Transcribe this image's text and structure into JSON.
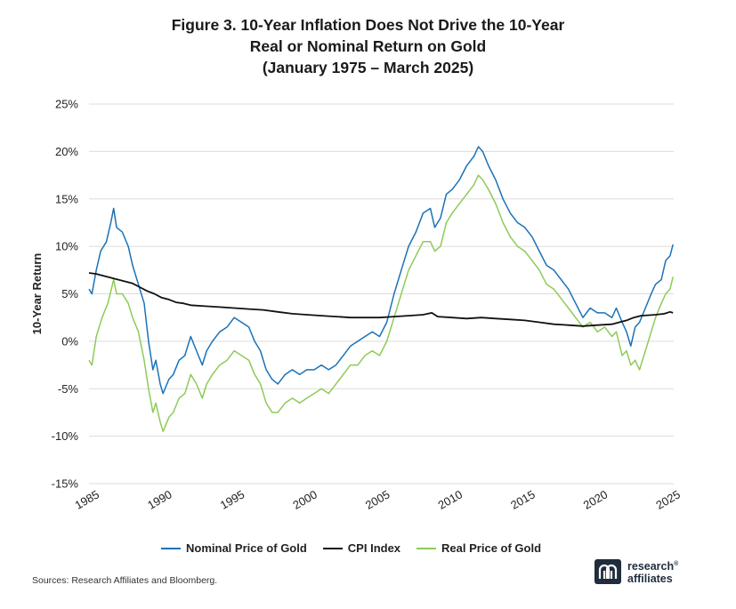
{
  "title": {
    "line1": "Figure 3. 10-Year Inflation Does Not Drive the 10-Year",
    "line2": "Real or Nominal Return on Gold",
    "line3": "(January 1975 – March 2025)"
  },
  "source": "Sources: Research Affiliates and Bloomberg.",
  "logo": {
    "line1": "research",
    "line2": "affiliates",
    "trademark": "®"
  },
  "colors": {
    "nominal": "#1a72b8",
    "cpi": "#111111",
    "real": "#8dcb57",
    "grid": "#dcdcdc"
  },
  "chart_data": {
    "type": "line",
    "ylabel": "10-Year Return",
    "xlabel": "",
    "xlim": [
      1985,
      2025.25
    ],
    "ylim": [
      -15,
      25
    ],
    "x_ticks": [
      1985,
      1990,
      1995,
      2000,
      2005,
      2010,
      2015,
      2020,
      2025
    ],
    "x_tick_labels": [
      "1985",
      "1990",
      "1995",
      "2000",
      "2005",
      "2010",
      "2015",
      "2020",
      "2025"
    ],
    "y_ticks": [
      -15,
      -10,
      -5,
      0,
      5,
      10,
      15,
      20,
      25
    ],
    "y_tick_labels": [
      "-15%",
      "-10%",
      "-5%",
      "0%",
      "5%",
      "10%",
      "15%",
      "20%",
      "25%"
    ],
    "grid": "horizontal",
    "legend_position": "bottom",
    "series": [
      {
        "name": "Nominal Price of Gold",
        "color": "#1a72b8",
        "points": [
          [
            1985.0,
            5.5
          ],
          [
            1985.2,
            5.0
          ],
          [
            1985.5,
            7.5
          ],
          [
            1985.8,
            9.5
          ],
          [
            1986.2,
            10.5
          ],
          [
            1986.5,
            12.5
          ],
          [
            1986.7,
            14.0
          ],
          [
            1986.9,
            12.0
          ],
          [
            1987.3,
            11.5
          ],
          [
            1987.7,
            10.0
          ],
          [
            1988.0,
            8.0
          ],
          [
            1988.4,
            6.0
          ],
          [
            1988.8,
            4.0
          ],
          [
            1989.1,
            0.0
          ],
          [
            1989.4,
            -3.0
          ],
          [
            1989.6,
            -2.0
          ],
          [
            1989.9,
            -4.5
          ],
          [
            1990.1,
            -5.5
          ],
          [
            1990.5,
            -4.0
          ],
          [
            1990.8,
            -3.5
          ],
          [
            1991.2,
            -2.0
          ],
          [
            1991.6,
            -1.5
          ],
          [
            1992.0,
            0.5
          ],
          [
            1992.4,
            -1.0
          ],
          [
            1992.8,
            -2.5
          ],
          [
            1993.1,
            -1.0
          ],
          [
            1993.5,
            0.0
          ],
          [
            1994.0,
            1.0
          ],
          [
            1994.5,
            1.5
          ],
          [
            1995.0,
            2.5
          ],
          [
            1995.5,
            2.0
          ],
          [
            1996.0,
            1.5
          ],
          [
            1996.4,
            0.0
          ],
          [
            1996.8,
            -1.0
          ],
          [
            1997.2,
            -3.0
          ],
          [
            1997.6,
            -4.0
          ],
          [
            1998.0,
            -4.5
          ],
          [
            1998.5,
            -3.5
          ],
          [
            1999.0,
            -3.0
          ],
          [
            1999.5,
            -3.5
          ],
          [
            2000.0,
            -3.0
          ],
          [
            2000.5,
            -3.0
          ],
          [
            2001.0,
            -2.5
          ],
          [
            2001.5,
            -3.0
          ],
          [
            2002.0,
            -2.5
          ],
          [
            2002.5,
            -1.5
          ],
          [
            2003.0,
            -0.5
          ],
          [
            2003.5,
            0.0
          ],
          [
            2004.0,
            0.5
          ],
          [
            2004.5,
            1.0
          ],
          [
            2005.0,
            0.5
          ],
          [
            2005.5,
            2.0
          ],
          [
            2006.0,
            5.0
          ],
          [
            2006.5,
            7.5
          ],
          [
            2007.0,
            10.0
          ],
          [
            2007.5,
            11.5
          ],
          [
            2008.0,
            13.5
          ],
          [
            2008.5,
            14.0
          ],
          [
            2008.8,
            12.0
          ],
          [
            2009.2,
            13.0
          ],
          [
            2009.6,
            15.5
          ],
          [
            2010.0,
            16.0
          ],
          [
            2010.5,
            17.0
          ],
          [
            2011.0,
            18.5
          ],
          [
            2011.5,
            19.5
          ],
          [
            2011.8,
            20.5
          ],
          [
            2012.1,
            20.0
          ],
          [
            2012.5,
            18.5
          ],
          [
            2013.0,
            17.0
          ],
          [
            2013.5,
            15.0
          ],
          [
            2014.0,
            13.5
          ],
          [
            2014.5,
            12.5
          ],
          [
            2015.0,
            12.0
          ],
          [
            2015.5,
            11.0
          ],
          [
            2016.0,
            9.5
          ],
          [
            2016.5,
            8.0
          ],
          [
            2017.0,
            7.5
          ],
          [
            2017.5,
            6.5
          ],
          [
            2018.0,
            5.5
          ],
          [
            2018.5,
            4.0
          ],
          [
            2019.0,
            2.5
          ],
          [
            2019.5,
            3.5
          ],
          [
            2020.0,
            3.0
          ],
          [
            2020.5,
            3.0
          ],
          [
            2021.0,
            2.5
          ],
          [
            2021.3,
            3.5
          ],
          [
            2021.7,
            2.0
          ],
          [
            2022.0,
            1.0
          ],
          [
            2022.3,
            -0.5
          ],
          [
            2022.6,
            1.5
          ],
          [
            2022.9,
            2.0
          ],
          [
            2023.3,
            3.5
          ],
          [
            2023.7,
            5.0
          ],
          [
            2024.0,
            6.0
          ],
          [
            2024.4,
            6.5
          ],
          [
            2024.7,
            8.5
          ],
          [
            2025.0,
            9.0
          ],
          [
            2025.2,
            10.2
          ]
        ]
      },
      {
        "name": "CPI Index",
        "color": "#111111",
        "points": [
          [
            1985.0,
            7.2
          ],
          [
            1985.5,
            7.1
          ],
          [
            1986.0,
            6.9
          ],
          [
            1986.5,
            6.7
          ],
          [
            1987.0,
            6.5
          ],
          [
            1987.5,
            6.3
          ],
          [
            1988.0,
            6.1
          ],
          [
            1988.5,
            5.7
          ],
          [
            1989.0,
            5.3
          ],
          [
            1989.5,
            5.0
          ],
          [
            1990.0,
            4.6
          ],
          [
            1990.5,
            4.4
          ],
          [
            1991.0,
            4.1
          ],
          [
            1991.5,
            4.0
          ],
          [
            1992.0,
            3.8
          ],
          [
            1993.0,
            3.7
          ],
          [
            1994.0,
            3.6
          ],
          [
            1995.0,
            3.5
          ],
          [
            1996.0,
            3.4
          ],
          [
            1997.0,
            3.3
          ],
          [
            1998.0,
            3.1
          ],
          [
            1999.0,
            2.9
          ],
          [
            2000.0,
            2.8
          ],
          [
            2001.0,
            2.7
          ],
          [
            2002.0,
            2.6
          ],
          [
            2003.0,
            2.5
          ],
          [
            2004.0,
            2.5
          ],
          [
            2005.0,
            2.5
          ],
          [
            2006.0,
            2.6
          ],
          [
            2007.0,
            2.7
          ],
          [
            2008.0,
            2.8
          ],
          [
            2008.6,
            3.0
          ],
          [
            2009.0,
            2.6
          ],
          [
            2010.0,
            2.5
          ],
          [
            2011.0,
            2.4
          ],
          [
            2012.0,
            2.5
          ],
          [
            2013.0,
            2.4
          ],
          [
            2014.0,
            2.3
          ],
          [
            2015.0,
            2.2
          ],
          [
            2016.0,
            2.0
          ],
          [
            2017.0,
            1.8
          ],
          [
            2018.0,
            1.7
          ],
          [
            2019.0,
            1.6
          ],
          [
            2020.0,
            1.7
          ],
          [
            2021.0,
            1.8
          ],
          [
            2021.5,
            2.0
          ],
          [
            2022.0,
            2.2
          ],
          [
            2022.5,
            2.5
          ],
          [
            2023.0,
            2.7
          ],
          [
            2024.0,
            2.8
          ],
          [
            2024.6,
            2.9
          ],
          [
            2025.0,
            3.1
          ],
          [
            2025.2,
            3.0
          ]
        ]
      },
      {
        "name": "Real Price of Gold",
        "color": "#8dcb57",
        "points": [
          [
            1985.0,
            -2.0
          ],
          [
            1985.2,
            -2.5
          ],
          [
            1985.5,
            0.5
          ],
          [
            1985.9,
            2.5
          ],
          [
            1986.3,
            4.0
          ],
          [
            1986.7,
            6.5
          ],
          [
            1986.9,
            5.0
          ],
          [
            1987.3,
            5.0
          ],
          [
            1987.7,
            4.0
          ],
          [
            1988.0,
            2.5
          ],
          [
            1988.4,
            1.0
          ],
          [
            1988.8,
            -2.0
          ],
          [
            1989.1,
            -5.0
          ],
          [
            1989.4,
            -7.5
          ],
          [
            1989.6,
            -6.5
          ],
          [
            1989.9,
            -8.5
          ],
          [
            1990.1,
            -9.5
          ],
          [
            1990.5,
            -8.0
          ],
          [
            1990.8,
            -7.5
          ],
          [
            1991.2,
            -6.0
          ],
          [
            1991.6,
            -5.5
          ],
          [
            1992.0,
            -3.5
          ],
          [
            1992.4,
            -4.5
          ],
          [
            1992.8,
            -6.0
          ],
          [
            1993.1,
            -4.5
          ],
          [
            1993.5,
            -3.5
          ],
          [
            1994.0,
            -2.5
          ],
          [
            1994.5,
            -2.0
          ],
          [
            1995.0,
            -1.0
          ],
          [
            1995.5,
            -1.5
          ],
          [
            1996.0,
            -2.0
          ],
          [
            1996.4,
            -3.5
          ],
          [
            1996.8,
            -4.5
          ],
          [
            1997.2,
            -6.5
          ],
          [
            1997.6,
            -7.5
          ],
          [
            1998.0,
            -7.5
          ],
          [
            1998.5,
            -6.5
          ],
          [
            1999.0,
            -6.0
          ],
          [
            1999.5,
            -6.5
          ],
          [
            2000.0,
            -6.0
          ],
          [
            2000.5,
            -5.5
          ],
          [
            2001.0,
            -5.0
          ],
          [
            2001.5,
            -5.5
          ],
          [
            2002.0,
            -4.5
          ],
          [
            2002.5,
            -3.5
          ],
          [
            2003.0,
            -2.5
          ],
          [
            2003.5,
            -2.5
          ],
          [
            2004.0,
            -1.5
          ],
          [
            2004.5,
            -1.0
          ],
          [
            2005.0,
            -1.5
          ],
          [
            2005.5,
            0.0
          ],
          [
            2006.0,
            2.5
          ],
          [
            2006.5,
            5.0
          ],
          [
            2007.0,
            7.5
          ],
          [
            2007.5,
            9.0
          ],
          [
            2008.0,
            10.5
          ],
          [
            2008.5,
            10.5
          ],
          [
            2008.8,
            9.5
          ],
          [
            2009.2,
            10.0
          ],
          [
            2009.6,
            12.5
          ],
          [
            2010.0,
            13.5
          ],
          [
            2010.5,
            14.5
          ],
          [
            2011.0,
            15.5
          ],
          [
            2011.5,
            16.5
          ],
          [
            2011.8,
            17.5
          ],
          [
            2012.1,
            17.0
          ],
          [
            2012.5,
            16.0
          ],
          [
            2013.0,
            14.5
          ],
          [
            2013.5,
            12.5
          ],
          [
            2014.0,
            11.0
          ],
          [
            2014.5,
            10.0
          ],
          [
            2015.0,
            9.5
          ],
          [
            2015.5,
            8.5
          ],
          [
            2016.0,
            7.5
          ],
          [
            2016.5,
            6.0
          ],
          [
            2017.0,
            5.5
          ],
          [
            2017.5,
            4.5
          ],
          [
            2018.0,
            3.5
          ],
          [
            2018.5,
            2.5
          ],
          [
            2019.0,
            1.5
          ],
          [
            2019.5,
            2.0
          ],
          [
            2020.0,
            1.0
          ],
          [
            2020.5,
            1.5
          ],
          [
            2021.0,
            0.5
          ],
          [
            2021.3,
            1.0
          ],
          [
            2021.7,
            -1.5
          ],
          [
            2022.0,
            -1.0
          ],
          [
            2022.3,
            -2.5
          ],
          [
            2022.6,
            -2.0
          ],
          [
            2022.9,
            -3.0
          ],
          [
            2023.3,
            -1.0
          ],
          [
            2023.7,
            1.0
          ],
          [
            2024.0,
            2.5
          ],
          [
            2024.4,
            4.0
          ],
          [
            2024.7,
            5.0
          ],
          [
            2025.0,
            5.5
          ],
          [
            2025.2,
            6.8
          ]
        ]
      }
    ]
  }
}
